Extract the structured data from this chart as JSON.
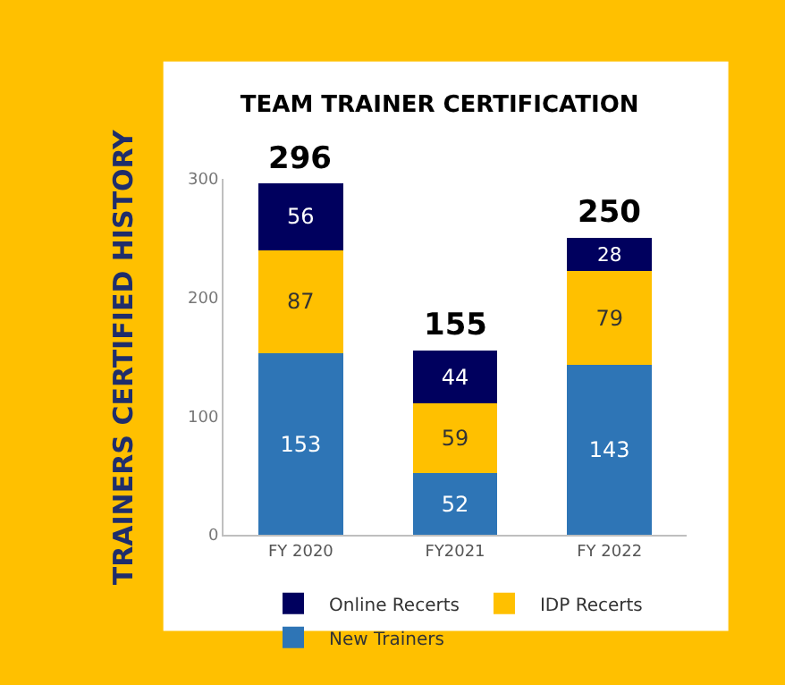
{
  "chart_data": {
    "type": "bar",
    "title": "TEAM TRAINER CERTIFICATION",
    "annotations": [
      "TRAINERS CERTIFIED HISTORY"
    ],
    "categories": [
      "FY 2020",
      "FY2021",
      "FY 2022"
    ],
    "stacked": true,
    "data_labels": true,
    "legend": "bottom",
    "grid": false,
    "series": [
      {
        "name": "New Trainers",
        "color": "#2e75b6",
        "values": [
          153,
          52,
          143
        ]
      },
      {
        "name": "IDP Recerts",
        "color": "#ffc000",
        "values": [
          87,
          59,
          79
        ]
      },
      {
        "name": "Online Recerts",
        "color": "#00005e",
        "values": [
          56,
          44,
          28
        ]
      }
    ],
    "totals": [
      "296",
      "155",
      "250"
    ],
    "ylim": [
      0,
      300
    ],
    "yticks": [
      0,
      100,
      200,
      300
    ]
  }
}
